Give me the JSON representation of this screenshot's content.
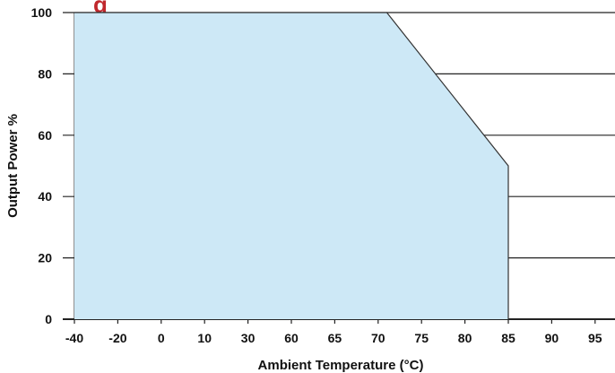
{
  "chart_data": {
    "type": "area",
    "title": "",
    "cropped_heading_fragment": "g",
    "xlabel": "Ambient Temperature (°C)",
    "ylabel": "Output Power %",
    "categories": [
      "-40",
      "-20",
      "0",
      "10",
      "30",
      "60",
      "65",
      "70",
      "75",
      "80",
      "85",
      "90",
      "95"
    ],
    "y_ticks": [
      "0",
      "20",
      "40",
      "60",
      "80",
      "100"
    ],
    "ylim": [
      0,
      100
    ],
    "grid": true,
    "fill_color": "#cde8f6",
    "grid_color": "#222222",
    "heading_color": "#c0282d",
    "series": [
      {
        "x": [
          "-40",
          "71",
          "85",
          "85"
        ],
        "values": [
          100,
          100,
          50,
          0
        ]
      }
    ],
    "vertical_markers": [
      "71"
    ]
  }
}
